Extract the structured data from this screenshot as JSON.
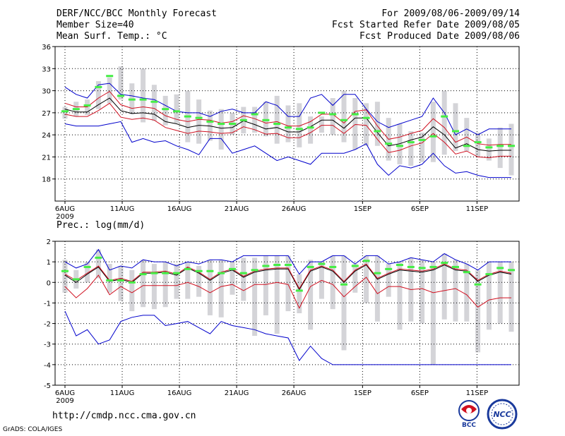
{
  "header": {
    "title": "DERF/NCC/BCC Monthly Forecast",
    "member_size": "Member Size=40",
    "variable": "Mean Surf. Temp.: °C",
    "period": "For 2009/08/06-2009/09/14",
    "start_date": "Fcst Started Refer Date 2009/08/05",
    "produced_date": "Fcst Produced Date 2009/08/06"
  },
  "footer": {
    "url": "http://cmdp.ncc.cma.gov.cn",
    "credit": "GrADS: COLA/IGES"
  },
  "logos": {
    "bcc": "BCC",
    "ncc": "NCC"
  },
  "colors": {
    "grid": "#000000",
    "box": "#d4d4d8",
    "median": "#44ee44",
    "mean": "#000000",
    "spread": "#d01020",
    "extreme": "#0000cc"
  },
  "chart_data": [
    {
      "type": "line",
      "title": "Mean Surf. Temp.: °C",
      "ylim": [
        15,
        36
      ],
      "yticks": [
        18,
        21,
        24,
        27,
        30,
        33,
        36
      ],
      "xlim": [
        0,
        39
      ],
      "xticks": [
        {
          "x": 0,
          "label": "6AUG",
          "sub": "2009"
        },
        {
          "x": 5,
          "label": "11AUG"
        },
        {
          "x": 10,
          "label": "16AUG"
        },
        {
          "x": 15,
          "label": "21AUG"
        },
        {
          "x": 20,
          "label": "26AUG"
        },
        {
          "x": 26,
          "label": "1SEP"
        },
        {
          "x": 31,
          "label": "6SEP"
        },
        {
          "x": 36,
          "label": "11SEP"
        }
      ],
      "box_low": [
        26.2,
        26.5,
        26.7,
        27.5,
        28.3,
        28.8,
        26.8,
        25.7,
        25.9,
        25.3,
        25.6,
        23.0,
        22.8,
        23.2,
        22.0,
        24.0,
        24.2,
        24.3,
        23.8,
        22.8,
        23.0,
        22.3,
        22.8,
        24.3,
        24.0,
        23.0,
        22.0,
        22.5,
        22.5,
        20.5,
        20.0,
        19.8,
        20.3,
        20.3,
        21.3,
        21.8,
        21.8,
        21.0,
        20.5,
        19.5,
        18.5
      ],
      "box_high": [
        27.8,
        28.5,
        28.8,
        31.3,
        31.8,
        33.3,
        31.0,
        33.0,
        30.8,
        29.3,
        29.5,
        30.0,
        28.8,
        27.3,
        27.5,
        27.0,
        27.8,
        27.8,
        28.5,
        29.3,
        28.0,
        28.3,
        26.5,
        26.5,
        29.0,
        30.0,
        29.0,
        28.3,
        28.5,
        26.3,
        25.5,
        24.5,
        24.3,
        28.5,
        30.0,
        28.3,
        26.3,
        24.3,
        23.5,
        25.0,
        25.5
      ],
      "median_markers": [
        27.2,
        27.5,
        28.0,
        30.5,
        32.0,
        29.3,
        28.8,
        28.8,
        28.5,
        27.5,
        27.2,
        26.5,
        26.3,
        25.8,
        25.5,
        25.5,
        26.0,
        26.8,
        26.0,
        25.5,
        25.0,
        24.8,
        25.0,
        27.0,
        26.8,
        26.0,
        26.8,
        26.3,
        24.5,
        22.8,
        22.5,
        23.0,
        23.3,
        23.8,
        26.5,
        24.5,
        22.5,
        23.0,
        22.3,
        22.5,
        22.5
      ],
      "series": [
        {
          "name": "ensemble mean",
          "color": "#000000",
          "values": [
            27.5,
            27.1,
            27.1,
            28.1,
            29.0,
            27.3,
            26.9,
            27.0,
            26.8,
            25.8,
            25.5,
            25.0,
            25.3,
            25.2,
            24.9,
            25.0,
            25.9,
            25.4,
            24.8,
            25.0,
            24.4,
            24.4,
            25.1,
            26.0,
            26.0,
            24.9,
            26.3,
            26.3,
            24.3,
            22.5,
            22.8,
            23.3,
            23.7,
            25.1,
            24.0,
            22.2,
            22.8,
            22.0,
            21.8,
            21.9,
            21.9
          ]
        },
        {
          "name": "upper spread",
          "color": "#d01020",
          "values": [
            28.3,
            27.8,
            27.8,
            29.0,
            29.9,
            28.1,
            27.6,
            27.8,
            27.6,
            26.6,
            26.1,
            25.8,
            26.1,
            26.0,
            25.6,
            25.8,
            26.6,
            26.2,
            25.6,
            25.8,
            25.2,
            25.2,
            25.8,
            26.8,
            26.8,
            25.6,
            27.2,
            27.4,
            25.2,
            23.4,
            23.7,
            24.2,
            24.6,
            26.2,
            25.0,
            23.0,
            23.7,
            22.8,
            22.6,
            22.7,
            22.7
          ]
        },
        {
          "name": "lower spread",
          "color": "#d01020",
          "values": [
            26.8,
            26.5,
            26.5,
            27.3,
            28.3,
            26.4,
            26.1,
            26.3,
            26.0,
            25.0,
            24.6,
            24.2,
            24.5,
            24.4,
            24.2,
            24.3,
            25.1,
            24.7,
            24.1,
            24.2,
            23.6,
            23.6,
            24.3,
            25.3,
            25.3,
            24.2,
            25.4,
            25.3,
            23.4,
            21.6,
            21.9,
            22.5,
            22.9,
            24.2,
            23.0,
            21.4,
            21.8,
            21.0,
            20.9,
            21.1,
            21.1
          ]
        },
        {
          "name": "maximum",
          "color": "#0000cc",
          "values": [
            30.5,
            29.5,
            29.0,
            30.8,
            31.0,
            29.5,
            29.3,
            29.0,
            28.8,
            28.0,
            27.2,
            27.0,
            27.0,
            26.5,
            27.2,
            27.5,
            27.0,
            27.0,
            28.5,
            28.0,
            26.5,
            26.5,
            29.0,
            29.5,
            28.0,
            29.5,
            29.5,
            27.5,
            25.8,
            25.0,
            25.5,
            26.0,
            26.5,
            29.0,
            27.0,
            24.0,
            24.8,
            24.0,
            24.8,
            24.8,
            24.8
          ]
        },
        {
          "name": "minimum",
          "color": "#0000cc",
          "values": [
            25.5,
            25.2,
            25.2,
            25.2,
            25.5,
            25.8,
            23.0,
            23.5,
            23.0,
            23.2,
            22.5,
            22.0,
            21.3,
            23.5,
            23.5,
            21.5,
            22.0,
            22.5,
            21.5,
            20.5,
            21.0,
            20.5,
            20.0,
            21.5,
            21.5,
            21.5,
            22.0,
            22.8,
            20.0,
            18.5,
            19.8,
            19.5,
            20.0,
            21.5,
            19.8,
            18.8,
            19.0,
            18.5,
            18.2,
            18.2,
            18.2
          ]
        }
      ]
    },
    {
      "type": "line",
      "title": "Prec.: log(mm/d)",
      "ylim": [
        -5,
        2
      ],
      "yticks": [
        -5,
        -4,
        -3,
        -2,
        -1,
        0,
        1,
        2
      ],
      "xlim": [
        0,
        39
      ],
      "xticks": [
        {
          "x": 0,
          "label": "6AUG",
          "sub": "2009"
        },
        {
          "x": 5,
          "label": "11AUG"
        },
        {
          "x": 10,
          "label": "16AUG"
        },
        {
          "x": 15,
          "label": "21AUG"
        },
        {
          "x": 20,
          "label": "26AUG"
        },
        {
          "x": 26,
          "label": "1SEP"
        },
        {
          "x": 31,
          "label": "6SEP"
        },
        {
          "x": 36,
          "label": "11SEP"
        }
      ],
      "box_low": [
        -0.5,
        -0.3,
        0.0,
        0.2,
        -0.5,
        -0.9,
        -1.4,
        -1.2,
        -1.3,
        -1.2,
        -0.8,
        -0.8,
        -0.7,
        -1.6,
        -1.7,
        -0.6,
        -0.9,
        -2.6,
        -1.6,
        -2.5,
        -1.4,
        -1.5,
        -2.3,
        -0.8,
        -1.3,
        -3.3,
        -0.5,
        -1.0,
        -1.9,
        -0.7,
        -2.3,
        -1.9,
        -2.0,
        -4.0,
        -1.8,
        -1.9,
        -1.9,
        -3.4,
        -2.3,
        -2.0,
        -2.4
      ],
      "box_high": [
        1.1,
        0.6,
        1.0,
        1.6,
        0.9,
        0.8,
        0.6,
        1.1,
        0.9,
        1.0,
        0.9,
        1.0,
        0.8,
        1.1,
        1.1,
        1.0,
        1.2,
        1.2,
        1.3,
        1.3,
        1.3,
        0.4,
        1.1,
        1.0,
        1.3,
        1.3,
        0.9,
        1.3,
        1.3,
        0.9,
        1.0,
        1.2,
        1.1,
        1.0,
        1.4,
        1.1,
        0.9,
        0.6,
        1.0,
        1.0,
        1.0
      ],
      "median_markers": [
        0.55,
        0.15,
        0.75,
        1.2,
        0.1,
        0.1,
        0.0,
        0.4,
        0.45,
        0.45,
        0.45,
        0.65,
        0.55,
        0.55,
        0.45,
        0.65,
        0.45,
        0.6,
        0.8,
        0.85,
        0.85,
        -0.4,
        0.75,
        0.9,
        0.75,
        -0.1,
        0.8,
        1.05,
        0.45,
        0.65,
        0.85,
        0.75,
        0.7,
        0.75,
        0.95,
        0.75,
        0.5,
        -0.1,
        0.4,
        0.7,
        0.6
      ],
      "series": [
        {
          "name": "ensemble mean",
          "color": "#000000",
          "values": [
            0.35,
            0.0,
            0.4,
            0.75,
            0.05,
            0.15,
            0.0,
            0.45,
            0.45,
            0.5,
            0.35,
            0.7,
            0.45,
            0.1,
            0.45,
            0.6,
            0.25,
            0.5,
            0.6,
            0.65,
            0.65,
            -0.35,
            0.55,
            0.75,
            0.55,
            0.0,
            0.55,
            0.85,
            0.15,
            0.4,
            0.6,
            0.55,
            0.5,
            0.6,
            0.85,
            0.6,
            0.55,
            0.05,
            0.35,
            0.5,
            0.4
          ]
        },
        {
          "name": "upper spread",
          "color": "#d01020",
          "values": [
            0.4,
            0.1,
            0.45,
            0.8,
            0.1,
            0.2,
            0.05,
            0.5,
            0.5,
            0.55,
            0.4,
            0.75,
            0.5,
            0.15,
            0.5,
            0.65,
            0.3,
            0.55,
            0.65,
            0.7,
            0.7,
            -0.3,
            0.6,
            0.8,
            0.6,
            0.05,
            0.6,
            0.9,
            0.2,
            0.45,
            0.65,
            0.6,
            0.55,
            0.65,
            0.9,
            0.65,
            0.6,
            0.1,
            0.4,
            0.55,
            0.45
          ]
        },
        {
          "name": "lower spread",
          "color": "#d01020",
          "values": [
            -0.2,
            -0.75,
            -0.3,
            0.35,
            -0.6,
            -0.2,
            -0.5,
            -0.15,
            -0.15,
            -0.15,
            -0.15,
            0.0,
            -0.2,
            -0.5,
            -0.2,
            -0.1,
            -0.4,
            -0.1,
            -0.1,
            0.0,
            -0.1,
            -1.25,
            -0.2,
            0.1,
            -0.1,
            -0.7,
            -0.2,
            0.25,
            -0.55,
            -0.2,
            -0.2,
            -0.35,
            -0.3,
            -0.5,
            -0.4,
            -0.3,
            -0.6,
            -1.2,
            -0.85,
            -0.75,
            -0.75
          ]
        },
        {
          "name": "maximum",
          "color": "#0000cc",
          "values": [
            1.0,
            0.7,
            0.9,
            1.6,
            0.6,
            0.8,
            0.7,
            1.1,
            1.0,
            1.0,
            0.8,
            1.0,
            0.9,
            1.1,
            1.1,
            1.0,
            1.3,
            1.3,
            1.3,
            1.3,
            1.3,
            0.4,
            1.0,
            1.0,
            1.3,
            1.3,
            0.9,
            1.3,
            1.3,
            0.9,
            1.0,
            1.2,
            1.1,
            1.0,
            1.4,
            1.1,
            0.9,
            0.6,
            1.0,
            1.0,
            1.0
          ]
        },
        {
          "name": "minimum",
          "color": "#0000cc",
          "values": [
            -1.4,
            -2.6,
            -2.3,
            -3.0,
            -2.8,
            -1.9,
            -1.7,
            -1.6,
            -1.6,
            -2.1,
            -2.0,
            -1.9,
            -2.2,
            -2.5,
            -1.9,
            -2.1,
            -2.2,
            -2.3,
            -2.5,
            -2.6,
            -2.7,
            -3.8,
            -3.1,
            -3.7,
            -4.0,
            -4.0,
            -4.0,
            -4.0,
            -4.0,
            -4.0,
            -4.0,
            -4.0,
            -4.0,
            -4.0,
            -4.0,
            -4.0,
            -4.0,
            -4.0,
            -4.0,
            -4.0,
            -4.0
          ]
        }
      ]
    }
  ]
}
